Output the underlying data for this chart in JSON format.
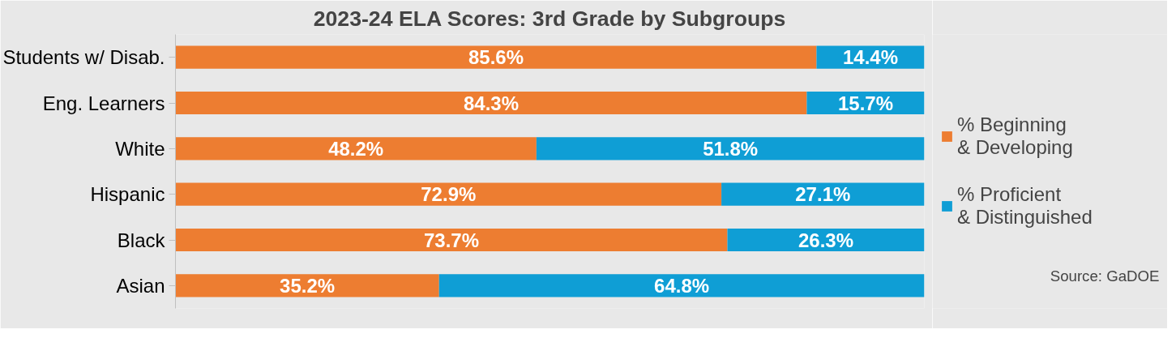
{
  "chart_data": {
    "type": "bar",
    "orientation": "horizontal",
    "stacked": true,
    "title": "2023-24 ELA Scores: 3rd Grade by Subgroups",
    "categories": [
      "Students w/ Disab.",
      "Eng. Learners",
      "White",
      "Hispanic",
      "Black",
      "Asian"
    ],
    "series": [
      {
        "name": "% Beginning\n& Developing",
        "color": "#ed7d31",
        "values": [
          85.6,
          84.3,
          48.2,
          72.9,
          73.7,
          35.2
        ],
        "value_labels": [
          "85.6%",
          "84.3%",
          "48.2%",
          "72.9%",
          "73.7%",
          "35.2%"
        ]
      },
      {
        "name": "% Proficient\n& Distinguished",
        "color": "#0f9ed5",
        "values": [
          14.4,
          15.7,
          51.8,
          27.1,
          26.3,
          64.8
        ],
        "value_labels": [
          "14.4%",
          "15.7%",
          "51.8%",
          "27.1%",
          "26.3%",
          "64.8%"
        ]
      }
    ],
    "legend": "right",
    "grid": false,
    "annotations": [
      "Source: GaDOE"
    ]
  }
}
